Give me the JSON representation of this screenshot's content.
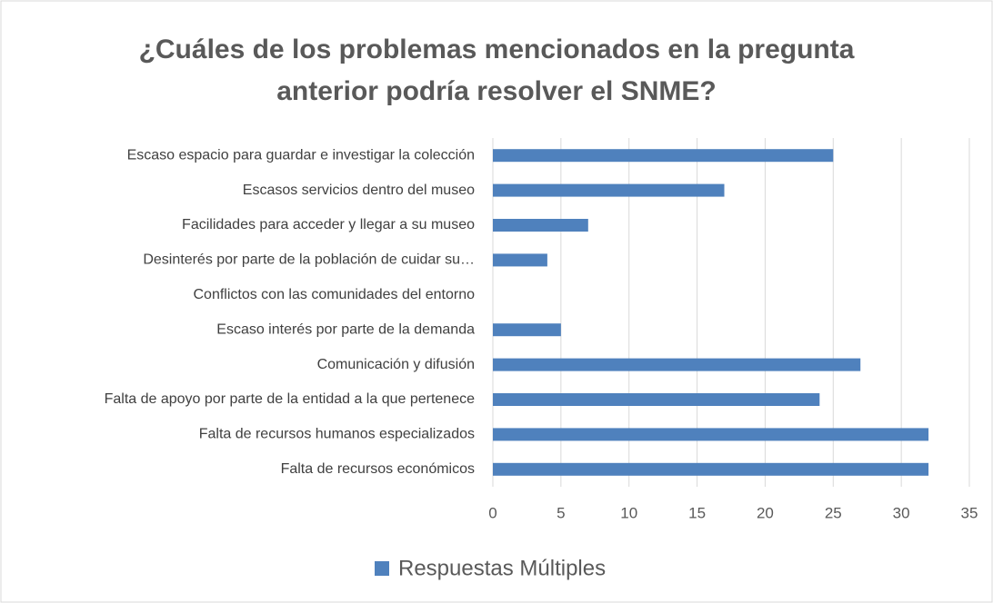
{
  "chart_data": {
    "type": "barh",
    "title": "¿Cuáles de los problemas mencionados en la pregunta anterior podría resolver el SNME?",
    "categories": [
      "Escaso espacio para guardar e investigar la colección",
      "Escasos servicios dentro del museo",
      "Facilidades para acceder y llegar a su museo",
      "Desinterés por parte de la población de cuidar su…",
      "Conflictos con las comunidades del entorno",
      "Escaso interés por parte de la demanda",
      "Comunicación y difusión",
      "Falta de apoyo por parte de la entidad a la que pertenece",
      "Falta de recursos humanos especializados",
      "Falta de recursos económicos"
    ],
    "series": [
      {
        "name": "Respuestas Múltiples",
        "color": "#4f81bd",
        "values": [
          25,
          17,
          7,
          4,
          0,
          5,
          27,
          24,
          32,
          32
        ]
      }
    ],
    "xlim": [
      0,
      35
    ],
    "xticks": [
      0,
      5,
      10,
      15,
      20,
      25,
      30,
      35
    ],
    "grid": true,
    "legend": "bottom"
  }
}
